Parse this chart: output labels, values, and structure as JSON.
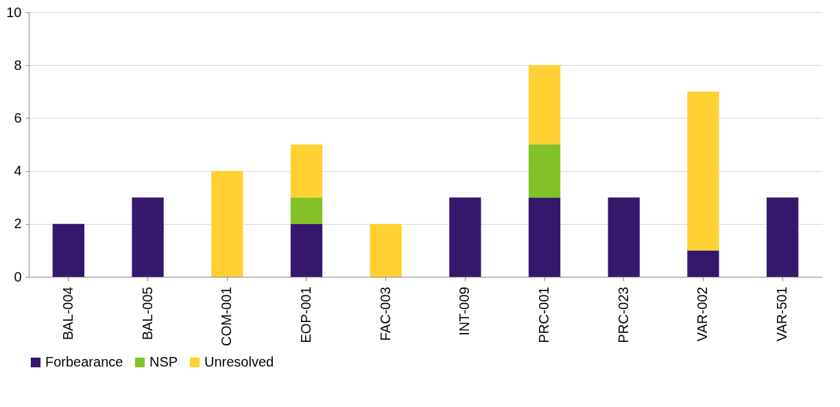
{
  "chart_data": {
    "type": "bar",
    "stacked": true,
    "categories": [
      "BAL-004",
      "BAL-005",
      "COM-001",
      "EOP-001",
      "FAC-003",
      "INT-009",
      "PRC-001",
      "PRC-023",
      "VAR-002",
      "VAR-501"
    ],
    "series": [
      {
        "name": "Forbearance",
        "color": "#35186b",
        "values": [
          2,
          3,
          null,
          2,
          null,
          3,
          3,
          3,
          1,
          3
        ]
      },
      {
        "name": "NSP",
        "color": "#82c228",
        "values": [
          null,
          null,
          null,
          1,
          null,
          null,
          2,
          null,
          null,
          null
        ]
      },
      {
        "name": "Unresolved",
        "color": "#ffd133",
        "values": [
          null,
          null,
          4,
          2,
          2,
          null,
          3,
          null,
          6,
          null
        ]
      }
    ],
    "ylim": [
      0,
      10
    ],
    "yticks": [
      0,
      2,
      4,
      6,
      8,
      10
    ],
    "grid": "y",
    "legend": "bottom"
  }
}
